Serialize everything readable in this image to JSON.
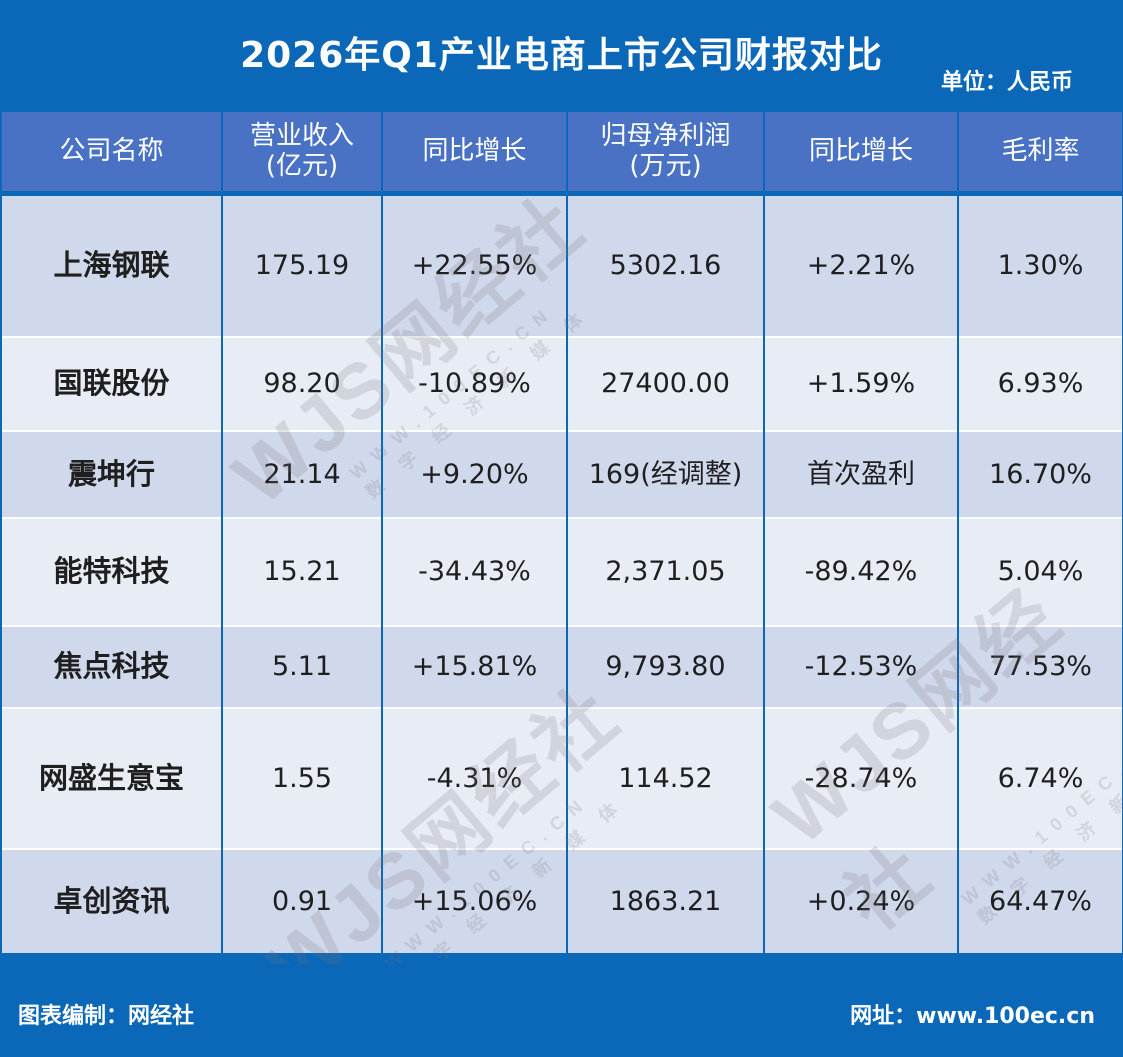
{
  "title": "2026年Q1产业电商上市公司财报对比",
  "unit": "单位：人民币",
  "headers": [
    [
      "公司名称"
    ],
    [
      "营业收入",
      "(亿元)"
    ],
    [
      "同比增长"
    ],
    [
      "归母净利润",
      "(万元)"
    ],
    [
      "同比增长"
    ],
    [
      "毛利率"
    ]
  ],
  "rows": [
    [
      "上海钢联",
      "175.19",
      "+22.55%",
      "5302.16",
      "+2.21%",
      "1.30%"
    ],
    [
      "国联股份",
      "98.20",
      "-10.89%",
      "27400.00",
      "+1.59%",
      "6.93%"
    ],
    [
      "震坤行",
      "21.14",
      "+9.20%",
      "169(经调整)",
      "首次盈利",
      "16.70%"
    ],
    [
      "能特科技",
      "15.21",
      "-34.43%",
      "2,371.05",
      "-89.42%",
      "5.04%"
    ],
    [
      "焦点科技",
      "5.11",
      "+15.81%",
      "9,793.80",
      "-12.53%",
      "77.53%"
    ],
    [
      "网盛生意宝",
      "1.55",
      "-4.31%",
      "114.52",
      "-28.74%",
      "6.74%"
    ],
    [
      "卓创资讯",
      "0.91",
      "+15.06%",
      "1863.21",
      "+0.24%",
      "64.47%"
    ]
  ],
  "watermark": {
    "brand": "WJS网经社",
    "site": "WWW.100EC.CN",
    "tagline": "数 字 经 济 新 媒 体"
  },
  "footer": {
    "left": "图表编制：网经社",
    "right": "网址：www.100ec.cn"
  },
  "colors": {
    "brand_blue": "#0b67b8",
    "header_blue": "#4a72c4",
    "row_dark": "#d0d8ec",
    "row_light": "#e8ecf5"
  }
}
